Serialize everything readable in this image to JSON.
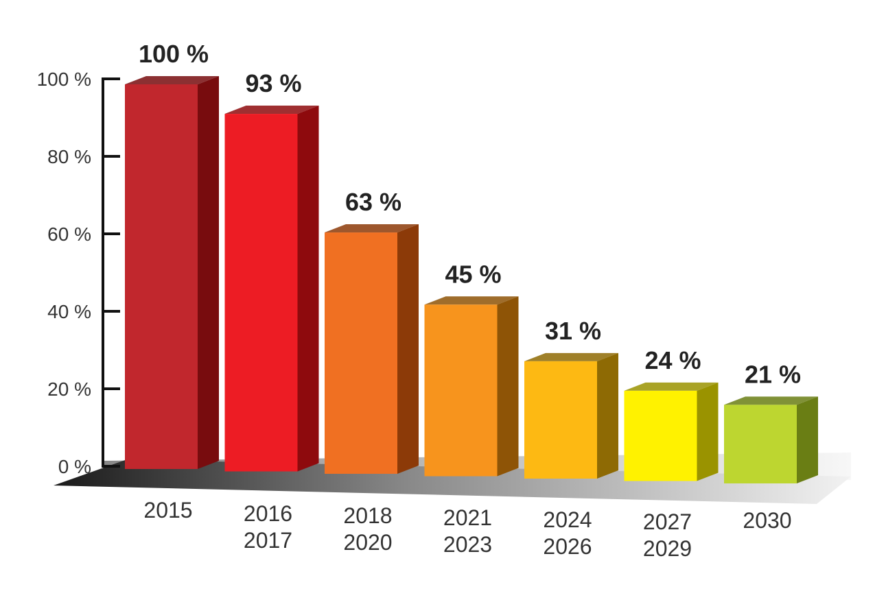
{
  "chart_data": {
    "type": "bar",
    "style": "3d",
    "title": "",
    "xlabel": "",
    "ylabel": "",
    "ylim": [
      0,
      100
    ],
    "y_ticks": [
      "0 %",
      "20 %",
      "40 %",
      "60 %",
      "80 %",
      "100 %"
    ],
    "y_tick_values": [
      0,
      20,
      40,
      60,
      80,
      100
    ],
    "grid": false,
    "categories": [
      [
        "2015"
      ],
      [
        "2016",
        "2017"
      ],
      [
        "2018",
        "2020"
      ],
      [
        "2021",
        "2023"
      ],
      [
        "2024",
        "2026"
      ],
      [
        "2027",
        "2029"
      ],
      [
        "2030"
      ]
    ],
    "values": [
      100,
      93,
      63,
      45,
      31,
      24,
      21
    ],
    "data_labels": [
      "100 %",
      "93 %",
      "63 %",
      "45 %",
      "31 %",
      "24 %",
      "21 %"
    ],
    "colors": [
      "#C1272D",
      "#ED1C24",
      "#F07022",
      "#F7941D",
      "#FDB913",
      "#FFF200",
      "#BDD630"
    ],
    "side_colors": [
      "#780C0E",
      "#8E0A0D",
      "#8C3A08",
      "#8E5406",
      "#8E6A04",
      "#9A9300",
      "#6A7E14"
    ]
  }
}
